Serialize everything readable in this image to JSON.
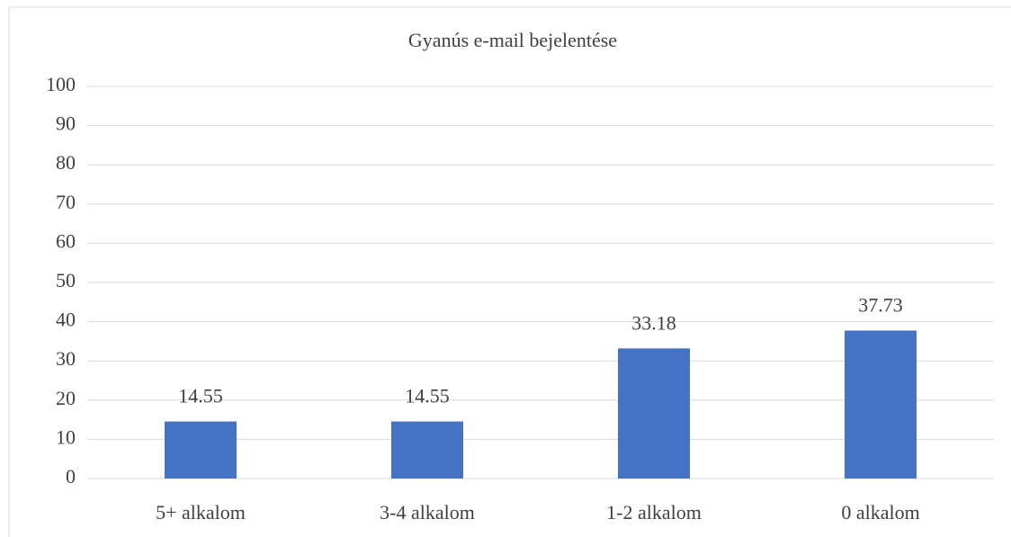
{
  "chart_data": {
    "type": "bar",
    "title": "Gyanús e-mail bejelentése",
    "categories": [
      "5+ alkalom",
      "3-4 alkalom",
      "1-2 alkalom",
      "0 alkalom"
    ],
    "values": [
      14.55,
      14.55,
      33.18,
      37.73
    ],
    "color": "#4472c4",
    "ylim": [
      0,
      100
    ],
    "yticks": [
      0,
      10,
      20,
      30,
      40,
      50,
      60,
      70,
      80,
      90,
      100
    ],
    "grid": true
  }
}
